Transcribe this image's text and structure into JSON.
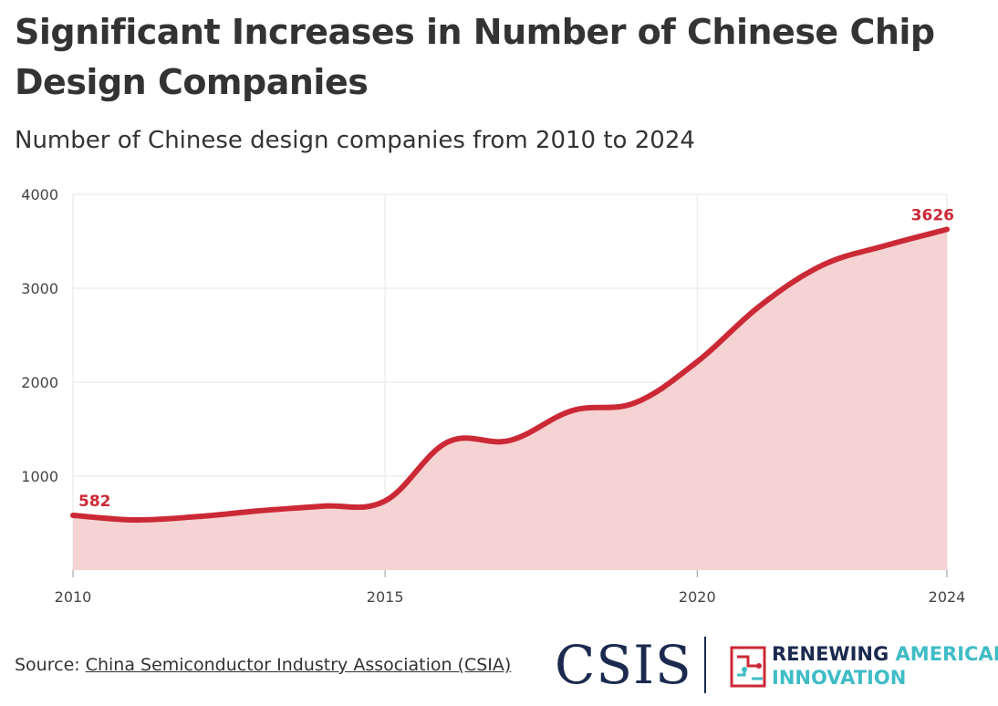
{
  "header": {
    "title": "Significant Increases in Number of Chinese Chip Design Companies",
    "subtitle": "Number of Chinese design companies from 2010 to 2024"
  },
  "colors": {
    "line": "#cc2936",
    "area": "#f5d3d3",
    "grid": "#e6e6e6",
    "title": "#333333",
    "csis_navy": "#1b2a4e",
    "rai_teal": "#3fbcc6"
  },
  "chart_data": {
    "type": "area",
    "title": "Significant Increases in Number of Chinese Chip Design Companies",
    "subtitle": "Number of Chinese design companies from 2010 to 2024",
    "x": [
      2010,
      2011,
      2012,
      2013,
      2014,
      2015,
      2016,
      2017,
      2018,
      2019,
      2020,
      2021,
      2022,
      2023,
      2024
    ],
    "series": [
      {
        "values": [
          582,
          534,
          570,
          632,
          681,
          736,
          1362,
          1380,
          1698,
          1780,
          2218,
          2810,
          3243,
          3451,
          3626
        ]
      }
    ],
    "xlim": [
      2010,
      2024
    ],
    "ylim": [
      0,
      4000
    ],
    "x_ticks": [
      "2010",
      "2015",
      "2020",
      "2024"
    ],
    "y_ticks": [
      "1000",
      "2000",
      "3000",
      "4000"
    ],
    "data_labels": [
      {
        "x": 2010,
        "text": "582"
      },
      {
        "x": 2024,
        "text": "3626"
      }
    ],
    "grid": true,
    "legend": "none"
  },
  "footer": {
    "source_prefix": "Source: ",
    "source_link": "China Semiconductor Industry Association (CSIA)",
    "logo_csis": "CSIS",
    "logo_rai_word1": "RENEWING",
    "logo_rai_word2": "AMERICAN",
    "logo_rai_word3": "INNOVATION"
  },
  "icons": [
    "csis-logo",
    "circuit-icon"
  ]
}
